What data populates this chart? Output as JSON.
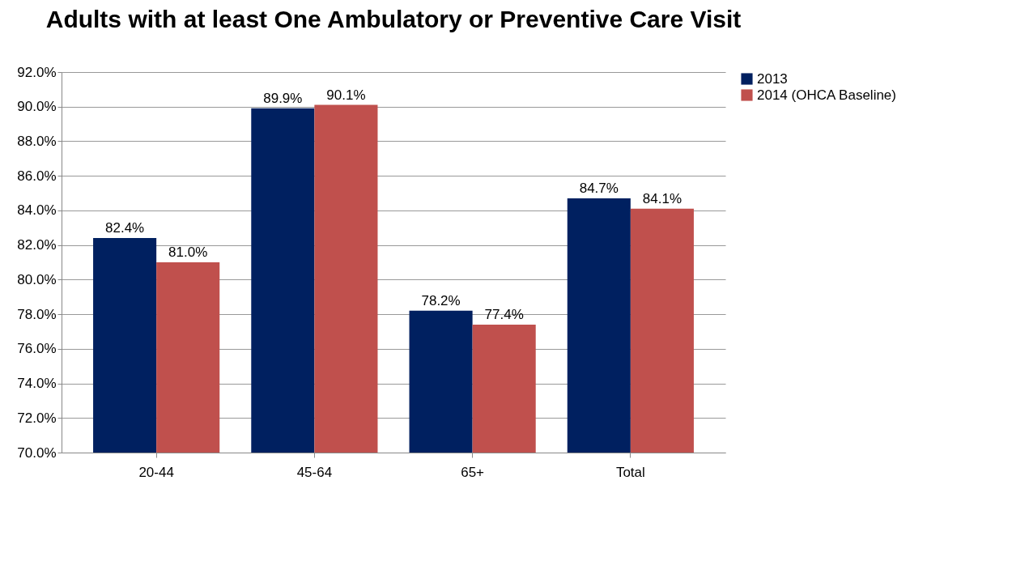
{
  "chart_data": {
    "type": "bar",
    "title": "Adults with at least One Ambulatory or Preventive Care Visit",
    "categories": [
      "20-44",
      "45-64",
      "65+",
      "Total"
    ],
    "series": [
      {
        "name": "2013",
        "color": "#002060",
        "values": [
          82.4,
          89.9,
          78.2,
          84.7
        ],
        "value_labels": [
          "82.4%",
          "89.9%",
          "78.2%",
          "84.7%"
        ]
      },
      {
        "name": "2014 (OHCA Baseline)",
        "color": "#c0504d",
        "values": [
          81.0,
          90.1,
          77.4,
          84.1
        ],
        "value_labels": [
          "81.0%",
          "90.1%",
          "77.4%",
          "84.1%"
        ]
      }
    ],
    "ylim": [
      70,
      92
    ],
    "yticks": [
      {
        "value": 70,
        "label": "70.0%"
      },
      {
        "value": 72,
        "label": "72.0%"
      },
      {
        "value": 74,
        "label": "74.0%"
      },
      {
        "value": 76,
        "label": "76.0%"
      },
      {
        "value": 78,
        "label": "78.0%"
      },
      {
        "value": 80,
        "label": "80.0%"
      },
      {
        "value": 82,
        "label": "82.0%"
      },
      {
        "value": 84,
        "label": "84.0%"
      },
      {
        "value": 86,
        "label": "86.0%"
      },
      {
        "value": 88,
        "label": "88.0%"
      },
      {
        "value": 90,
        "label": "90.0%"
      },
      {
        "value": 92,
        "label": "92.0%"
      }
    ],
    "grid": true,
    "legend": "right"
  }
}
